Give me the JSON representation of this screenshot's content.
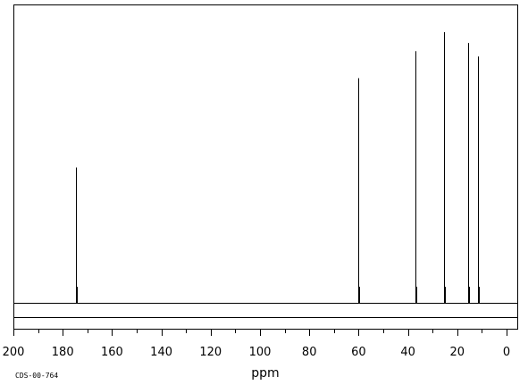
{
  "chart_data": {
    "type": "line",
    "title": "",
    "xlabel": "ppm",
    "ylabel": "",
    "xlim": [
      200,
      -4
    ],
    "x_reversed": true,
    "x_ticks": [
      200,
      180,
      160,
      140,
      120,
      100,
      80,
      60,
      40,
      20,
      0
    ],
    "ylim": [
      0,
      1.0
    ],
    "grid": false,
    "legend": "none",
    "line_color": "#000000",
    "peaks": [
      {
        "ppm": 174.8,
        "height": 0.5
      },
      {
        "ppm": 60.3,
        "height": 0.83
      },
      {
        "ppm": 36.8,
        "height": 0.93
      },
      {
        "ppm": 25.5,
        "height": 1.0
      },
      {
        "ppm": 15.4,
        "height": 0.96
      },
      {
        "ppm": 11.5,
        "height": 0.91
      }
    ],
    "annotations": [
      {
        "text": "CDS-00-764"
      }
    ]
  }
}
